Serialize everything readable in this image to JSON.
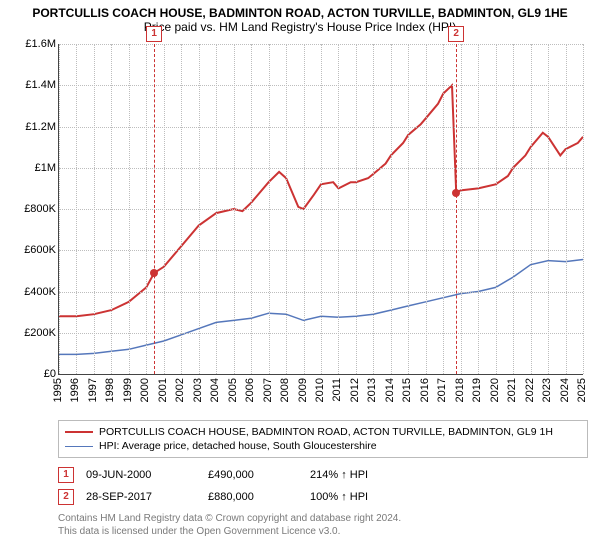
{
  "title": "PORTCULLIS COACH HOUSE, BADMINTON ROAD, ACTON TURVILLE, BADMINTON, GL9 1HE",
  "subtitle": "Price paid vs. HM Land Registry's House Price Index (HPI)",
  "chart": {
    "type": "line",
    "x_start_year": 1995,
    "x_end_year": 2025,
    "ylim": [
      0,
      1600000
    ],
    "ytick_step": 200000,
    "ytick_labels": [
      "£0",
      "£200K",
      "£400K",
      "£600K",
      "£800K",
      "£1M",
      "£1.2M",
      "£1.4M",
      "£1.6M"
    ],
    "xtick_years": [
      1995,
      1996,
      1997,
      1998,
      1999,
      2000,
      2001,
      2002,
      2003,
      2004,
      2005,
      2006,
      2007,
      2008,
      2009,
      2010,
      2011,
      2012,
      2013,
      2014,
      2015,
      2016,
      2017,
      2018,
      2019,
      2020,
      2021,
      2022,
      2023,
      2024,
      2025
    ],
    "grid_color": "#bdbdbd",
    "background_color": "#ffffff",
    "series": [
      {
        "name": "PORTCULLIS COACH HOUSE, BADMINTON ROAD, ACTON TURVILLE, BADMINTON, GL9 1H",
        "color": "#cc3333",
        "width": 2,
        "points": [
          [
            1995.0,
            280000
          ],
          [
            1996.0,
            280000
          ],
          [
            1997.0,
            290000
          ],
          [
            1998.0,
            310000
          ],
          [
            1999.0,
            350000
          ],
          [
            2000.0,
            420000
          ],
          [
            2000.45,
            490000
          ],
          [
            2001.0,
            520000
          ],
          [
            2002.0,
            620000
          ],
          [
            2003.0,
            720000
          ],
          [
            2004.0,
            780000
          ],
          [
            2005.0,
            800000
          ],
          [
            2005.5,
            790000
          ],
          [
            2006.0,
            830000
          ],
          [
            2007.0,
            930000
          ],
          [
            2007.6,
            980000
          ],
          [
            2008.0,
            950000
          ],
          [
            2008.7,
            810000
          ],
          [
            2009.0,
            800000
          ],
          [
            2009.6,
            870000
          ],
          [
            2010.0,
            920000
          ],
          [
            2010.7,
            930000
          ],
          [
            2011.0,
            900000
          ],
          [
            2011.7,
            930000
          ],
          [
            2012.0,
            930000
          ],
          [
            2012.7,
            950000
          ],
          [
            2013.0,
            970000
          ],
          [
            2013.7,
            1020000
          ],
          [
            2014.0,
            1060000
          ],
          [
            2014.7,
            1120000
          ],
          [
            2015.0,
            1160000
          ],
          [
            2015.7,
            1210000
          ],
          [
            2016.0,
            1240000
          ],
          [
            2016.7,
            1310000
          ],
          [
            2017.0,
            1360000
          ],
          [
            2017.5,
            1400000
          ],
          [
            2017.74,
            880000
          ],
          [
            2018.0,
            890000
          ],
          [
            2019.0,
            900000
          ],
          [
            2020.0,
            920000
          ],
          [
            2020.7,
            960000
          ],
          [
            2021.0,
            1000000
          ],
          [
            2021.7,
            1060000
          ],
          [
            2022.0,
            1100000
          ],
          [
            2022.7,
            1170000
          ],
          [
            2023.0,
            1150000
          ],
          [
            2023.7,
            1060000
          ],
          [
            2024.0,
            1090000
          ],
          [
            2024.7,
            1120000
          ],
          [
            2025.0,
            1150000
          ]
        ]
      },
      {
        "name": "HPI: Average price, detached house, South Gloucestershire",
        "color": "#5577bb",
        "width": 1.5,
        "points": [
          [
            1995.0,
            95000
          ],
          [
            1996.0,
            95000
          ],
          [
            1997.0,
            100000
          ],
          [
            1998.0,
            110000
          ],
          [
            1999.0,
            120000
          ],
          [
            2000.0,
            140000
          ],
          [
            2001.0,
            160000
          ],
          [
            2002.0,
            190000
          ],
          [
            2003.0,
            220000
          ],
          [
            2004.0,
            250000
          ],
          [
            2005.0,
            260000
          ],
          [
            2006.0,
            270000
          ],
          [
            2007.0,
            295000
          ],
          [
            2008.0,
            290000
          ],
          [
            2009.0,
            260000
          ],
          [
            2010.0,
            280000
          ],
          [
            2011.0,
            275000
          ],
          [
            2012.0,
            280000
          ],
          [
            2013.0,
            290000
          ],
          [
            2014.0,
            310000
          ],
          [
            2015.0,
            330000
          ],
          [
            2016.0,
            350000
          ],
          [
            2017.0,
            370000
          ],
          [
            2018.0,
            390000
          ],
          [
            2019.0,
            400000
          ],
          [
            2020.0,
            420000
          ],
          [
            2021.0,
            470000
          ],
          [
            2022.0,
            530000
          ],
          [
            2023.0,
            550000
          ],
          [
            2024.0,
            545000
          ],
          [
            2025.0,
            555000
          ]
        ]
      }
    ],
    "sales": [
      {
        "idx": "1",
        "year_frac": 2000.45,
        "date": "09-JUN-2000",
        "price_num": 490000,
        "price": "£490,000",
        "pct": "214% ↑ HPI"
      },
      {
        "idx": "2",
        "year_frac": 2017.74,
        "date": "28-SEP-2017",
        "price_num": 880000,
        "price": "£880,000",
        "pct": "100% ↑ HPI"
      }
    ]
  },
  "attribution": {
    "line1": "Contains HM Land Registry data © Crown copyright and database right 2024.",
    "line2": "This data is licensed under the Open Government Licence v3.0."
  }
}
